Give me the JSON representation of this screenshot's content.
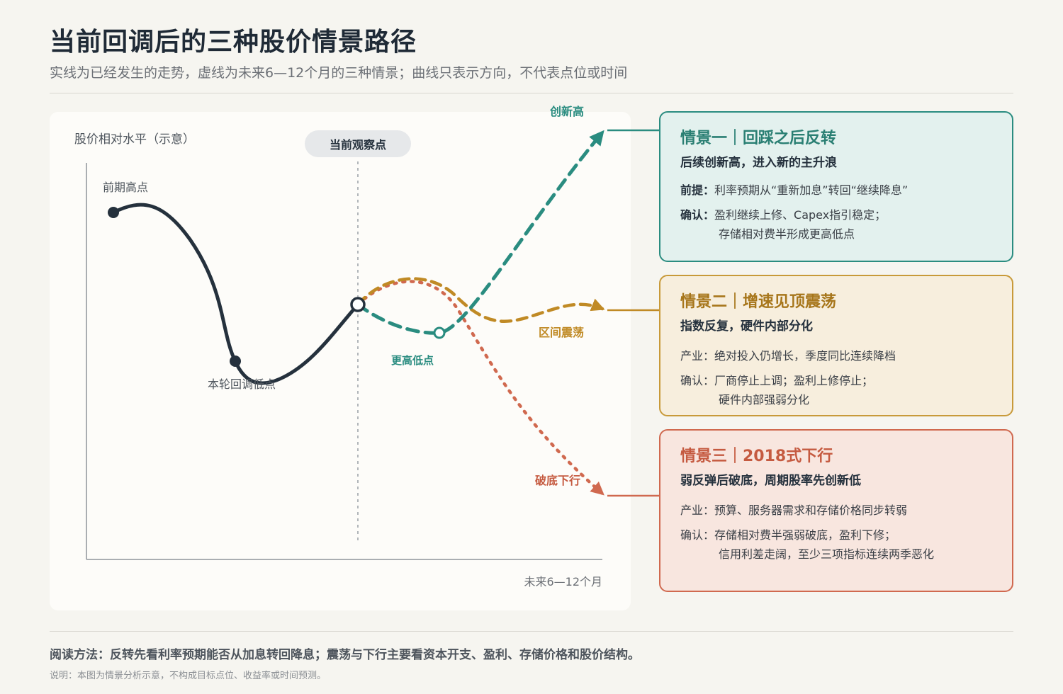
{
  "header": {
    "title": "当前回调后的三种股价情景路径",
    "subtitle": "实线为已经发生的走势，虚线为未来6—12个月的三种情景；曲线只表示方向，不代表点位或时间"
  },
  "chart": {
    "y_axis_label": "股价相对水平（示意）",
    "x_axis_label": "未来6—12个月",
    "observation_label": "当前观察点",
    "points": {
      "prior_high": "前期高点",
      "current_low": "本轮回调低点",
      "higher_low": "更高低点"
    },
    "scenario_labels": {
      "new_high": "创新高",
      "range": "区间震荡",
      "breakdown": "破底下行"
    },
    "colors": {
      "actual": "#25313d",
      "scenario1": "#2a8c80",
      "scenario2": "#c08a25",
      "scenario3": "#d0694f"
    }
  },
  "scenarios": [
    {
      "title": "情景一｜回踩之后反转",
      "summary": "后续创新高，进入新的主升浪",
      "line1_label": "前提：",
      "line1_text": "利率预期从“重新加息”转回“继续降息”",
      "line2_label": "确认：",
      "line2_text": "盈利继续上修、Capex指引稳定；",
      "line3_text": "存储相对费半形成更高低点"
    },
    {
      "title": "情景二｜增速见顶震荡",
      "summary": "指数反复，硬件内部分化",
      "line1_label": "产业：",
      "line1_text": "绝对投入仍增长，季度同比连续降档",
      "line2_label": "确认：",
      "line2_text": "厂商停止上调；盈利上修停止；",
      "line3_text": "硬件内部强弱分化"
    },
    {
      "title": "情景三｜2018式下行",
      "summary": "弱反弹后破底，周期股率先创新低",
      "line1_label": "产业：",
      "line1_text": "预算、服务器需求和存储价格同步转弱",
      "line2_label": "确认：",
      "line2_text": "存储相对费半强弱破底，盈利下修；",
      "line3_text": "信用利差走阔，至少三项指标连续两季恶化"
    }
  ],
  "footer": {
    "reading_note": "阅读方法：反转先看利率预期能否从加息转回降息；震荡与下行主要看资本开支、盈利、存储价格和股价结构。",
    "disclaimer": "说明：本图为情景分析示意，不构成目标点位、收益率或时间预测。"
  }
}
